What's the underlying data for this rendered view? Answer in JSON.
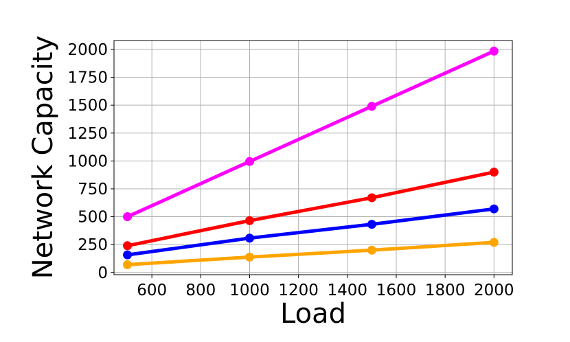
{
  "chart_data": {
    "type": "line",
    "title": "",
    "xlabel": "Load",
    "ylabel": "Network Capacity",
    "x": [
      500,
      1000,
      1500,
      2000
    ],
    "xlim": [
      445,
      2075
    ],
    "ylim": [
      -20,
      2080
    ],
    "xticks": [
      600,
      800,
      1000,
      1200,
      1400,
      1600,
      1800,
      2000
    ],
    "xtick_labels": [
      "600",
      "800",
      "1000",
      "1200",
      "1400",
      "1600",
      "1800",
      "2000"
    ],
    "yticks": [
      0,
      250,
      500,
      750,
      1000,
      1250,
      1500,
      1750,
      2000
    ],
    "ytick_labels": [
      "0",
      "250",
      "500",
      "750",
      "1000",
      "1250",
      "1500",
      "1750",
      "2000"
    ],
    "grid": true,
    "legend": "none",
    "series": [
      {
        "color": "#ff00ff",
        "values": [
          500,
          995,
          1490,
          1985
        ]
      },
      {
        "color": "#ff0000",
        "values": [
          240,
          465,
          670,
          900
        ]
      },
      {
        "color": "#0000ff",
        "values": [
          158,
          308,
          432,
          570
        ]
      },
      {
        "color": "#ffa500",
        "values": [
          70,
          138,
          200,
          270
        ]
      }
    ]
  }
}
